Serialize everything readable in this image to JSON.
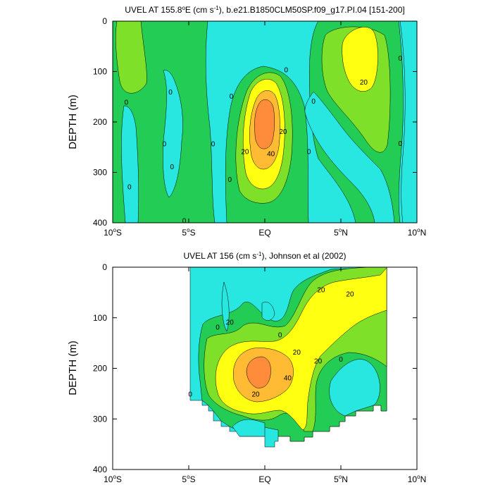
{
  "chart_data": [
    {
      "type": "heatmap",
      "title_prefix": "UVEL AT 155.8",
      "title_deg": "o",
      "title_mid": "E (cm s",
      "title_exp": "-1",
      "title_suffix": "), b.e21.B1850CLM50SP.f09_g17.PI.04 [151-200]",
      "ylabel": "DEPTH (m)",
      "xlim": [
        -10,
        10
      ],
      "ylim": [
        0,
        400
      ],
      "x_ticks": [
        {
          "value": -10,
          "num": "10",
          "deg": "o",
          "hemi": "S"
        },
        {
          "value": -5,
          "num": "5",
          "deg": "o",
          "hemi": "S"
        },
        {
          "value": 0,
          "num": "EQ",
          "deg": "",
          "hemi": ""
        },
        {
          "value": 5,
          "num": "5",
          "deg": "o",
          "hemi": "N"
        },
        {
          "value": 10,
          "num": "10",
          "deg": "o",
          "hemi": "N"
        }
      ],
      "y_ticks": [
        0,
        100,
        200,
        300,
        400
      ],
      "contour_levels_cm_s": [
        0,
        10,
        20,
        30,
        40,
        50
      ],
      "colors": {
        "below_0": "#28e6e0",
        "0_10": "#22cc55",
        "10_20": "#7fe02a",
        "20_30": "#ffff12",
        "30_40": "#ffbb33",
        "40_plus": "#ff8c3a"
      },
      "features": [
        {
          "kind": "core",
          "x": 0.0,
          "depth": 190,
          "value": 50
        },
        {
          "kind": "maximum",
          "x": 6.0,
          "depth": 60,
          "value": 25
        }
      ],
      "contour_labels": [
        {
          "x": -9.1,
          "depth": 160,
          "text": "0"
        },
        {
          "x": -8.9,
          "depth": 328,
          "text": "0"
        },
        {
          "x": -6.2,
          "depth": 140,
          "text": "0"
        },
        {
          "x": -6.6,
          "depth": 243,
          "text": "0"
        },
        {
          "x": -6.1,
          "depth": 288,
          "text": "0"
        },
        {
          "x": -5.3,
          "depth": 395,
          "text": "0"
        },
        {
          "x": -3.4,
          "depth": 243,
          "text": "0"
        },
        {
          "x": -2.2,
          "depth": 148,
          "text": "0"
        },
        {
          "x": -2.3,
          "depth": 313,
          "text": "0"
        },
        {
          "x": 1.4,
          "depth": 96,
          "text": "0"
        },
        {
          "x": 3.2,
          "depth": 158,
          "text": "0"
        },
        {
          "x": 2.9,
          "depth": 258,
          "text": "0"
        },
        {
          "x": 8.9,
          "depth": 73,
          "text": "0"
        },
        {
          "x": 8.9,
          "depth": 242,
          "text": "0"
        },
        {
          "x": 6.5,
          "depth": 120,
          "text": "20"
        },
        {
          "x": 1.2,
          "depth": 218,
          "text": "20"
        },
        {
          "x": -1.3,
          "depth": 258,
          "text": "20"
        },
        {
          "x": 0.4,
          "depth": 262,
          "text": "40"
        }
      ]
    },
    {
      "type": "heatmap",
      "title_prefix": "UVEL AT 156 (cm s",
      "title_exp": "-1",
      "title_suffix": "), Johnson et al (2002)",
      "ylabel": "DEPTH (m)",
      "xlim": [
        -10,
        10
      ],
      "ylim": [
        0,
        400
      ],
      "x_ticks": [
        {
          "value": -10,
          "num": "10",
          "deg": "o",
          "hemi": "S"
        },
        {
          "value": -5,
          "num": "5",
          "deg": "o",
          "hemi": "S"
        },
        {
          "value": 0,
          "num": "EQ",
          "deg": "",
          "hemi": ""
        },
        {
          "value": 5,
          "num": "5",
          "deg": "o",
          "hemi": "N"
        },
        {
          "value": 10,
          "num": "10",
          "deg": "o",
          "hemi": "N"
        }
      ],
      "y_ticks": [
        0,
        100,
        200,
        300,
        400
      ],
      "data_extent": {
        "x_min": -5.0,
        "x_max": 8.0
      },
      "contour_levels_cm_s": [
        0,
        10,
        20,
        30,
        40,
        50
      ],
      "features": [
        {
          "kind": "core",
          "x": -0.2,
          "depth": 205,
          "value": 45
        }
      ],
      "contour_labels": [
        {
          "x": -2.3,
          "depth": 108,
          "text": "20"
        },
        {
          "x": -3.1,
          "depth": 118,
          "text": "0"
        },
        {
          "x": 1.0,
          "depth": 133,
          "text": "0"
        },
        {
          "x": 3.7,
          "depth": 44,
          "text": "20"
        },
        {
          "x": 5.6,
          "depth": 52,
          "text": "20"
        },
        {
          "x": 2.1,
          "depth": 167,
          "text": "20"
        },
        {
          "x": 3.5,
          "depth": 185,
          "text": "20"
        },
        {
          "x": 5.0,
          "depth": 181,
          "text": "0"
        },
        {
          "x": 1.5,
          "depth": 218,
          "text": "40"
        },
        {
          "x": -0.6,
          "depth": 250,
          "text": "20"
        },
        {
          "x": -4.9,
          "depth": 250,
          "text": "0"
        }
      ]
    }
  ]
}
